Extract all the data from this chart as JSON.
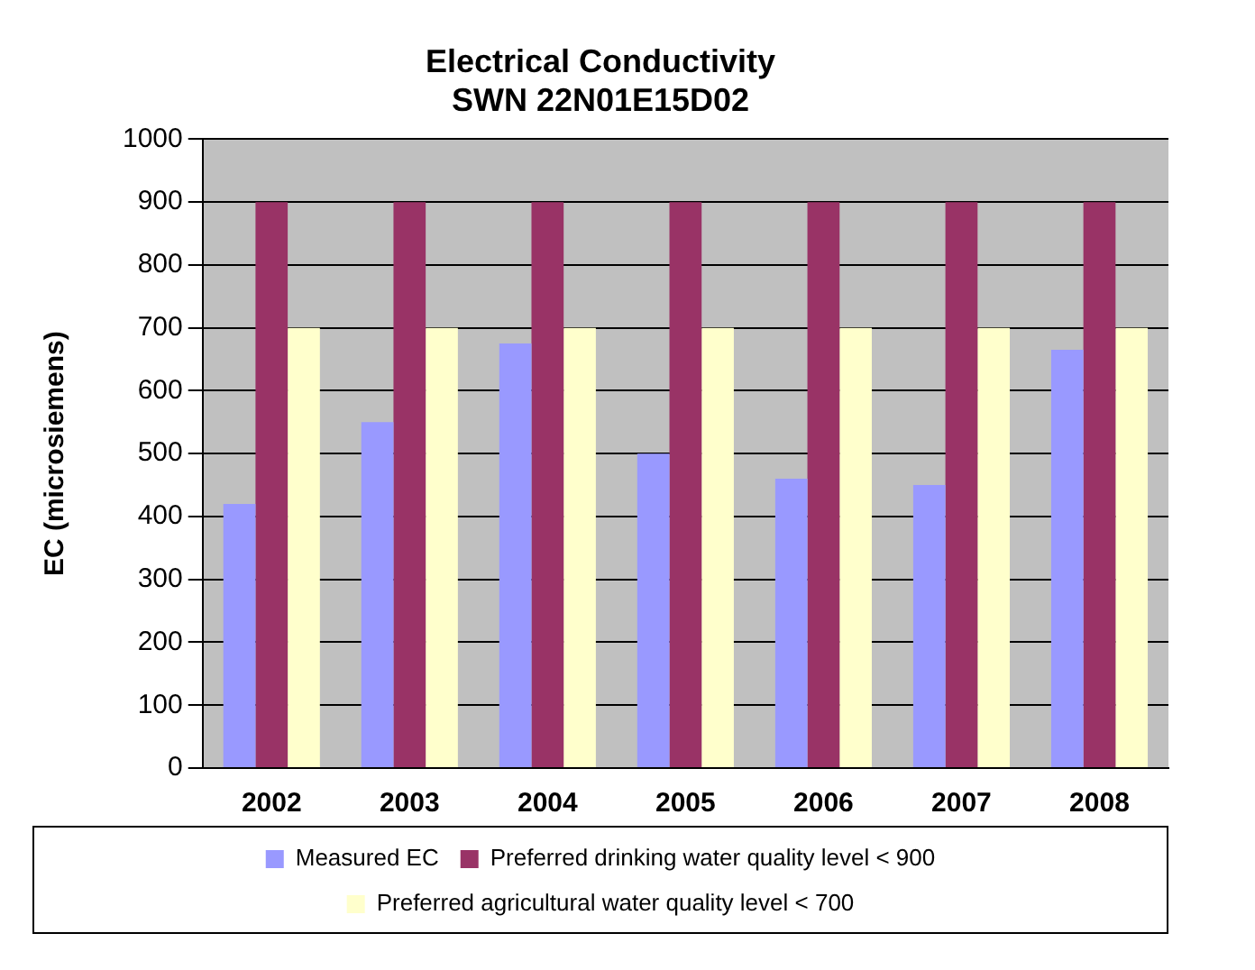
{
  "chart_data": {
    "type": "bar",
    "title": "Electrical Conductivity",
    "subtitle": "SWN 22N01E15D02",
    "ylabel": "EC (microsiemens)",
    "categories": [
      "2002",
      "2003",
      "2004",
      "2005",
      "2006",
      "2007",
      "2008"
    ],
    "series": [
      {
        "name": "Measured EC",
        "color": "#9999ff",
        "values": [
          420,
          550,
          675,
          500,
          460,
          450,
          665
        ]
      },
      {
        "name": "Preferred drinking water quality level < 900",
        "color": "#993366",
        "values": [
          900,
          900,
          900,
          900,
          900,
          900,
          900
        ]
      },
      {
        "name": "Preferred agricultural water quality level < 700",
        "color": "#ffffcc",
        "values": [
          700,
          700,
          700,
          700,
          700,
          700,
          700
        ]
      }
    ],
    "ylim": [
      0,
      1000
    ],
    "yticks": [
      0,
      100,
      200,
      300,
      400,
      500,
      600,
      700,
      800,
      900,
      1000
    ],
    "grid": "y",
    "legend": "bottom"
  }
}
